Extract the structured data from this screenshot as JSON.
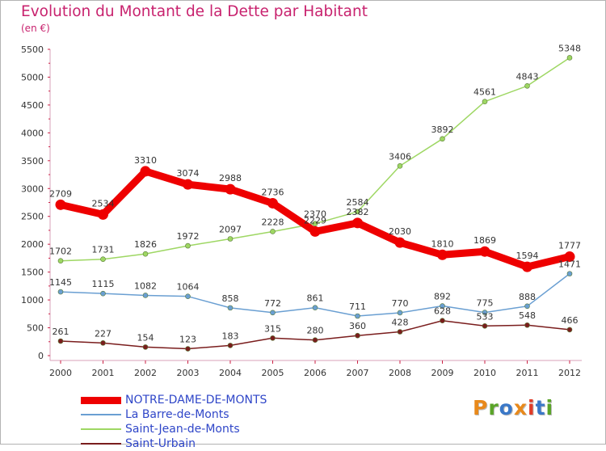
{
  "title": "Evolution du Montant de la Dette par Habitant",
  "unit": "(en €)",
  "logo_text": "Proxiti",
  "logo_colors": [
    "#e8891b",
    "#5aa428",
    "#3a78c8",
    "#e8891b",
    "#e03c28",
    "#3a78c8",
    "#5aa428"
  ],
  "chart_data": {
    "type": "line",
    "x": [
      2000,
      2001,
      2002,
      2003,
      2004,
      2005,
      2006,
      2007,
      2008,
      2009,
      2010,
      2011,
      2012
    ],
    "ylim": [
      0,
      5500
    ],
    "yticks": [
      0,
      500,
      1000,
      1500,
      2000,
      2500,
      3000,
      3500,
      4000,
      4500,
      5000,
      5500
    ],
    "grid": false,
    "legend_position": "bottom-left",
    "series": [
      {
        "name": "NOTRE-DAME-DE-MONTS",
        "color": "#ee0000",
        "bold": true,
        "values": [
          2709,
          2534,
          3310,
          3074,
          2988,
          2736,
          2229,
          2382,
          2030,
          1810,
          1869,
          1594,
          1777
        ]
      },
      {
        "name": "La Barre-de-Monts",
        "color": "#6a9fd2",
        "bold": false,
        "values": [
          1145,
          1115,
          1082,
          1064,
          858,
          772,
          861,
          711,
          770,
          892,
          775,
          888,
          1471
        ]
      },
      {
        "name": "Saint-Jean-de-Monts",
        "color": "#9ed763",
        "bold": false,
        "values": [
          1702,
          1731,
          1826,
          1972,
          2097,
          2228,
          2370,
          2584,
          3406,
          3892,
          4561,
          4843,
          5348
        ]
      },
      {
        "name": "Saint-Urbain",
        "color": "#7a1d1d",
        "bold": false,
        "values": [
          261,
          227,
          154,
          123,
          183,
          315,
          280,
          360,
          428,
          628,
          533,
          548,
          466
        ]
      }
    ]
  }
}
